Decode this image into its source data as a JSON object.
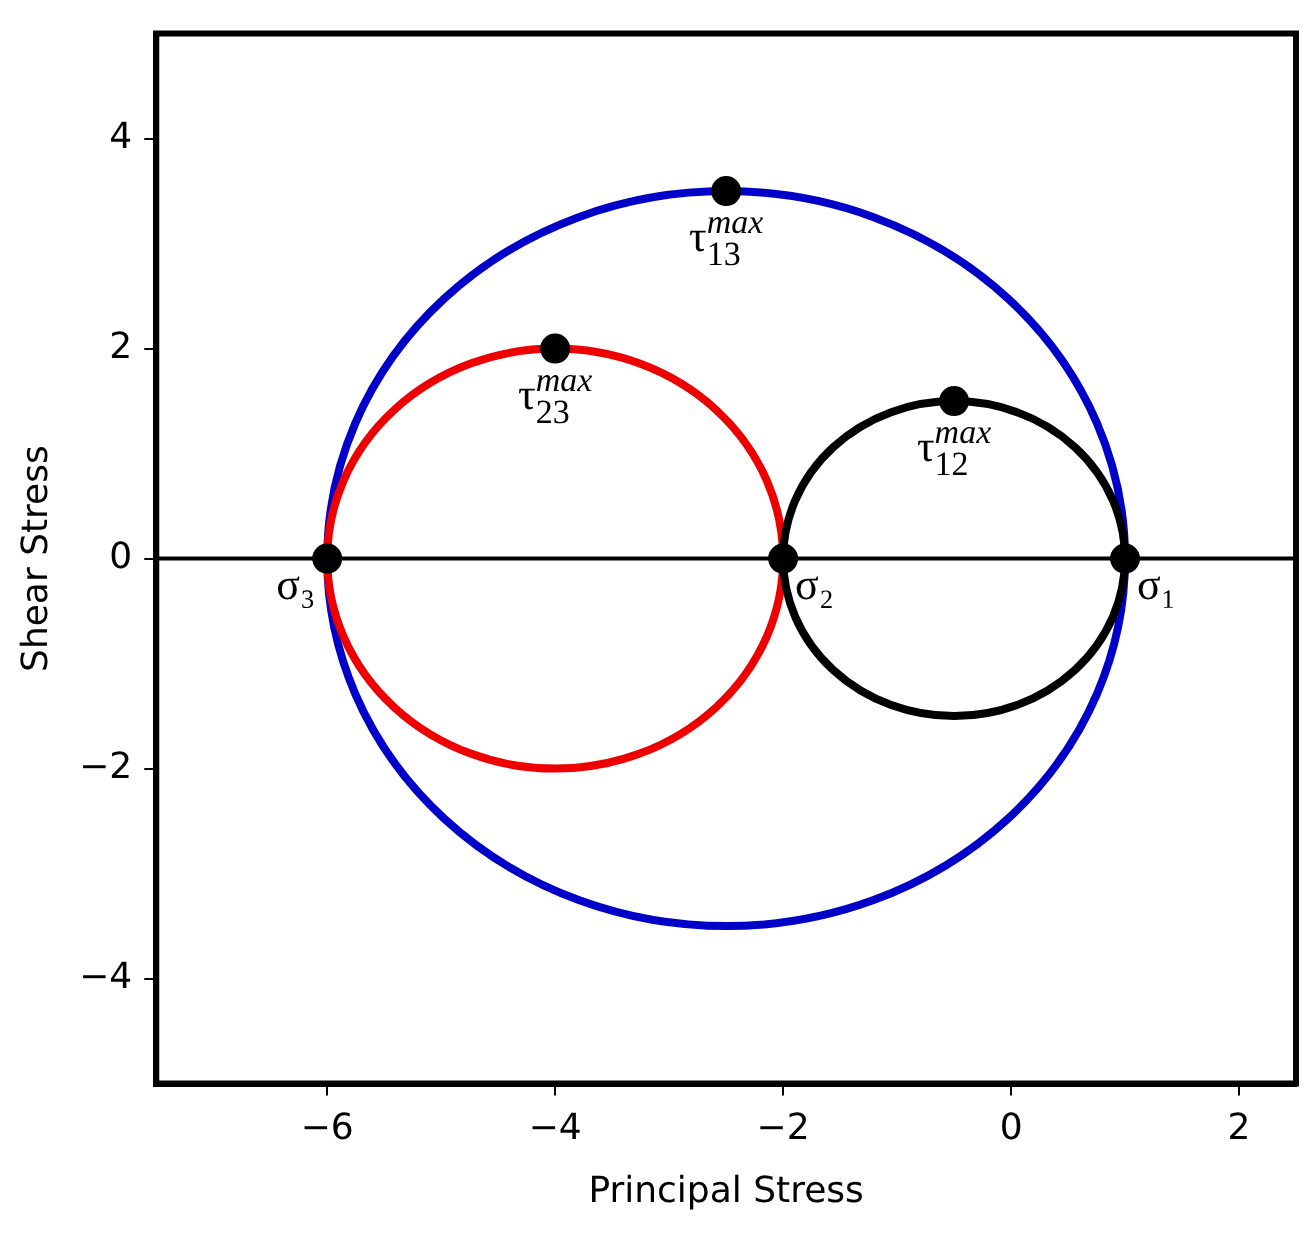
{
  "chart_data": {
    "type": "scatter",
    "xlabel": "Principal Stress",
    "ylabel": "Shear Stress",
    "xlim": [
      -7.5,
      2.5
    ],
    "ylim": [
      -5,
      5
    ],
    "xticks": [
      {
        "value": -6,
        "label": "−6"
      },
      {
        "value": -4,
        "label": "−4"
      },
      {
        "value": -2,
        "label": "−2"
      },
      0,
      2
    ],
    "yticks": [
      {
        "value": -4,
        "label": "−4"
      },
      {
        "value": -2,
        "label": "−2"
      },
      0,
      2,
      4
    ],
    "grid": false,
    "legend": false,
    "ref_lines": [
      {
        "axis": "y",
        "value": 0,
        "color": "#000000"
      }
    ],
    "series": [
      {
        "color": "#000000",
        "marker": "circle",
        "x": [
          -6,
          -2,
          1,
          -2.5,
          -4,
          -0.5
        ],
        "values": [
          0,
          0,
          0,
          3.5,
          2,
          1.5
        ]
      }
    ],
    "annotations": [
      {
        "text": "σ₃",
        "x": -6,
        "y": 0
      },
      {
        "text": "σ₂",
        "x": -2,
        "y": 0
      },
      {
        "text": "σ₁",
        "x": 1,
        "y": 0
      },
      {
        "text": "τ$^{max}$$_{13}$",
        "x": -2.5,
        "y": 3.5
      },
      {
        "text": "τ$^{max}$$_{23}$",
        "x": -4,
        "y": 2
      },
      {
        "text": "τ$^{max}$$_{12}$",
        "x": -0.5,
        "y": 1.5
      }
    ]
  }
}
